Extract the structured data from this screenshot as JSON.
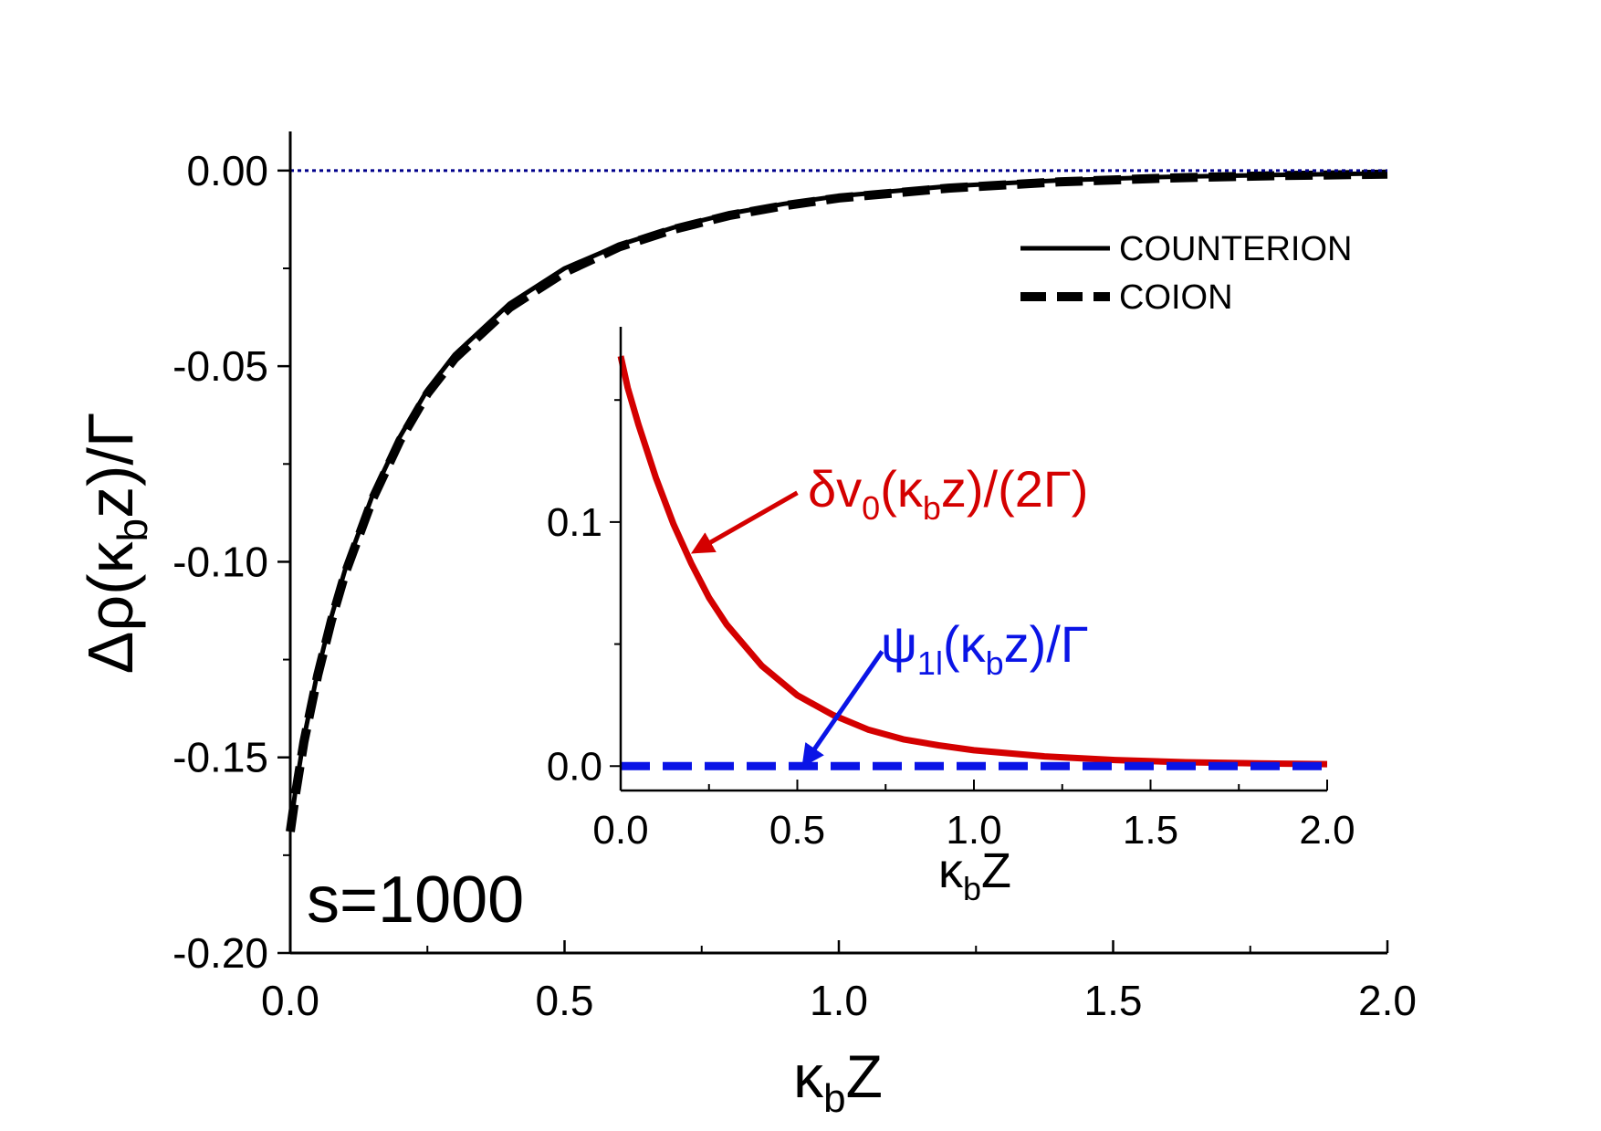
{
  "chart_data": [
    {
      "id": "main",
      "type": "line",
      "ylabel": "Δρ(κbz)/Γ",
      "ylabel_main": "Δρ(κ",
      "ylabel_sub": "b",
      "ylabel_tail": "z)/Γ",
      "xlabel_main": "κ",
      "xlabel_sub": "b",
      "xlabel_tail": "Z",
      "xlim": [
        0,
        2
      ],
      "ylim": [
        -0.2,
        0.01
      ],
      "xticks": [
        0,
        0.5,
        1,
        1.5,
        2
      ],
      "xtick_labels": [
        "0.0",
        "0.5",
        "1.0",
        "1.5",
        "2.0"
      ],
      "yticks": [
        0,
        -0.05,
        -0.1,
        -0.15,
        -0.2
      ],
      "ytick_labels": [
        "0.00",
        "-0.05",
        "-0.10",
        "-0.15",
        "-0.20"
      ],
      "annotation": "s=1000",
      "series": [
        {
          "name": "COUNTERION",
          "style": "solid",
          "color": "#000000",
          "x": [
            0,
            0.01,
            0.025,
            0.05,
            0.075,
            0.1,
            0.15,
            0.2,
            0.25,
            0.3,
            0.4,
            0.5,
            0.6,
            0.7,
            0.8,
            0.9,
            1.0,
            1.2,
            1.4,
            1.6,
            1.8,
            2.0
          ],
          "y": [
            -0.168,
            -0.158,
            -0.145,
            -0.128,
            -0.114,
            -0.102,
            -0.083,
            -0.068,
            -0.056,
            -0.047,
            -0.034,
            -0.025,
            -0.019,
            -0.0145,
            -0.011,
            -0.0085,
            -0.0065,
            -0.004,
            -0.0025,
            -0.0016,
            -0.0011,
            -0.0007
          ]
        },
        {
          "name": "COION",
          "style": "dashed",
          "color": "#000000",
          "x": [
            0,
            0.01,
            0.025,
            0.05,
            0.075,
            0.1,
            0.15,
            0.2,
            0.25,
            0.3,
            0.4,
            0.5,
            0.6,
            0.7,
            0.8,
            0.9,
            1.0,
            1.2,
            1.4,
            1.6,
            1.8,
            2.0
          ],
          "y": [
            -0.169,
            -0.159,
            -0.146,
            -0.129,
            -0.115,
            -0.103,
            -0.084,
            -0.069,
            -0.057,
            -0.048,
            -0.035,
            -0.026,
            -0.0195,
            -0.015,
            -0.0115,
            -0.009,
            -0.007,
            -0.0045,
            -0.0029,
            -0.0019,
            -0.0013,
            -0.0009
          ]
        },
        {
          "name": "zero reference",
          "style": "dotted",
          "color": "#00008b",
          "x": [
            0,
            2
          ],
          "y": [
            0,
            0
          ]
        }
      ],
      "legend": {
        "position": "top-right",
        "entries": [
          "COUNTERION",
          "COION"
        ]
      }
    },
    {
      "id": "inset",
      "type": "line",
      "xlabel_main": "κ",
      "xlabel_sub": "b",
      "xlabel_tail": "Z",
      "xlim": [
        0,
        2
      ],
      "ylim": [
        -0.01,
        0.18
      ],
      "xticks": [
        0,
        0.5,
        1,
        1.5,
        2
      ],
      "xtick_labels": [
        "0.0",
        "0.5",
        "1.0",
        "1.5",
        "2.0"
      ],
      "yticks": [
        0,
        0.1
      ],
      "ytick_labels": [
        "0.0",
        "0.1"
      ],
      "series": [
        {
          "name": "δv0(κbz)/(2Γ)",
          "style": "solid",
          "color": "#d40000",
          "x": [
            0,
            0.02,
            0.05,
            0.1,
            0.15,
            0.2,
            0.25,
            0.3,
            0.4,
            0.5,
            0.6,
            0.7,
            0.8,
            0.9,
            1.0,
            1.2,
            1.4,
            1.6,
            1.8,
            2.0
          ],
          "y": [
            0.168,
            0.155,
            0.14,
            0.118,
            0.099,
            0.083,
            0.069,
            0.058,
            0.041,
            0.029,
            0.021,
            0.015,
            0.011,
            0.0085,
            0.0065,
            0.004,
            0.0025,
            0.0016,
            0.0011,
            0.0008
          ]
        },
        {
          "name": "ψ1l(κbz)/Γ",
          "style": "dashed",
          "color": "#0a14e6",
          "x": [
            0,
            2
          ],
          "y": [
            0,
            0
          ]
        }
      ],
      "annotations": [
        {
          "label_main": "δv",
          "label_sub": "0",
          "label_mid": "(κ",
          "label_sub2": "b",
          "label_tail": "z)/(2Γ)",
          "color": "#d40000",
          "arrow_from": [
            0.5,
            0.112
          ],
          "arrow_to": [
            0.21,
            0.088
          ]
        },
        {
          "label_main": "ψ",
          "label_sub": "1l",
          "label_mid": "(κ",
          "label_sub2": "b",
          "label_tail": "z)/Γ",
          "color": "#0a14e6",
          "arrow_from": [
            0.74,
            0.047
          ],
          "arrow_to": [
            0.52,
            0.001
          ]
        }
      ]
    }
  ]
}
